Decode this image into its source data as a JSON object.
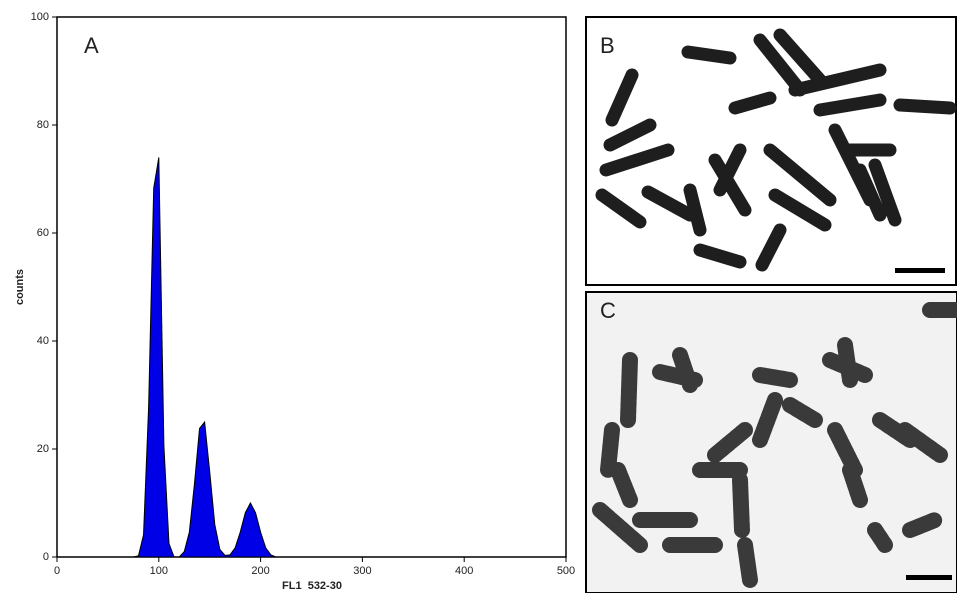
{
  "chart_data": {
    "type": "area",
    "x_label": "FL1  532-30",
    "y_label": "counts",
    "panel_labels": [
      "A",
      "B",
      "C"
    ],
    "x": [
      75,
      80,
      85,
      90,
      95,
      100,
      105,
      110,
      115,
      120,
      125,
      130,
      135,
      140,
      145,
      150,
      155,
      160,
      165,
      170,
      175,
      180,
      185,
      190,
      195,
      200,
      205,
      210,
      215
    ],
    "values": [
      0,
      0.2,
      4.1,
      27.8,
      68.3,
      74,
      20.6,
      2.5,
      0,
      0,
      1.0,
      4.6,
      13.5,
      23.8,
      25,
      15.8,
      6,
      1.4,
      0.3,
      0.4,
      1.7,
      4.6,
      8.2,
      10,
      8.2,
      4.6,
      1.7,
      0.4,
      0
    ],
    "color": "#0000e6",
    "xlim": [
      0,
      500
    ],
    "xticks": [
      0,
      100,
      200,
      300,
      400,
      500
    ],
    "ylim": [
      0,
      100
    ],
    "yticks": [
      0,
      20,
      40,
      60,
      80,
      100
    ]
  }
}
